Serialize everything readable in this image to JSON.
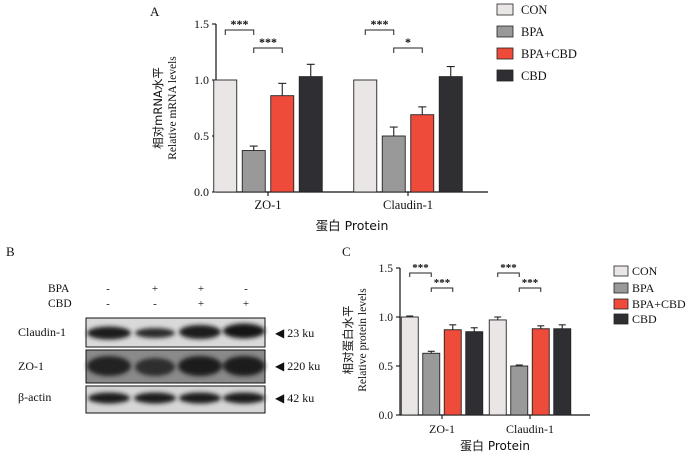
{
  "panel_labels": {
    "a": "A",
    "b": "B",
    "c": "C"
  },
  "legend_a": [
    "CON",
    "BPA",
    "BPA+CBD",
    "CBD"
  ],
  "legend_c": [
    "CON",
    "BPA",
    "BPA+CBD",
    "CBD"
  ],
  "colors": {
    "CON": "#ebe6e6",
    "BPA": "#999999",
    "BPA+CBD": "#ee4b3a",
    "CBD": "#2f2f33",
    "outline": "#222222"
  },
  "chart_data": [
    {
      "id": "A",
      "type": "bar",
      "title": "",
      "ylabel_cn": "相对mRNA水平",
      "ylabel_en": "Relative mRNA levels",
      "xlabel": "蛋白 Protein",
      "ylim": [
        0,
        1.5
      ],
      "yticks": [
        "0.0",
        "0.5",
        "1.0",
        "1.5"
      ],
      "ytick_values": [
        0,
        0.5,
        1.0,
        1.5
      ],
      "categories": [
        "ZO-1",
        "Claudin-1"
      ],
      "series": [
        {
          "name": "CON",
          "values": [
            1.0,
            1.0
          ],
          "errors": [
            0,
            0
          ]
        },
        {
          "name": "BPA",
          "values": [
            0.37,
            0.5
          ],
          "errors": [
            0.04,
            0.08
          ]
        },
        {
          "name": "BPA+CBD",
          "values": [
            0.86,
            0.69
          ],
          "errors": [
            0.11,
            0.07
          ]
        },
        {
          "name": "CBD",
          "values": [
            1.03,
            1.03
          ],
          "errors": [
            0.11,
            0.09
          ]
        }
      ],
      "significance": [
        {
          "category": 0,
          "from": 0,
          "to": 1,
          "label": "***"
        },
        {
          "category": 0,
          "from": 1,
          "to": 2,
          "label": "***"
        },
        {
          "category": 1,
          "from": 0,
          "to": 1,
          "label": "***"
        },
        {
          "category": 1,
          "from": 1,
          "to": 2,
          "label": "*"
        }
      ]
    },
    {
      "id": "C",
      "type": "bar",
      "title": "",
      "ylabel_cn": "相对蛋白水平",
      "ylabel_en": "Relative protein levels",
      "xlabel": "蛋白 Protein",
      "ylim": [
        0,
        1.5
      ],
      "yticks": [
        "0.0",
        "0.5",
        "1.0",
        "1.5"
      ],
      "ytick_values": [
        0,
        0.5,
        1.0,
        1.5
      ],
      "categories": [
        "ZO-1",
        "Claudin-1"
      ],
      "series": [
        {
          "name": "CON",
          "values": [
            1.0,
            0.97
          ],
          "errors": [
            0.01,
            0.03
          ]
        },
        {
          "name": "BPA",
          "values": [
            0.63,
            0.5
          ],
          "errors": [
            0.02,
            0.01
          ]
        },
        {
          "name": "BPA+CBD",
          "values": [
            0.87,
            0.88
          ],
          "errors": [
            0.05,
            0.03
          ]
        },
        {
          "name": "CBD",
          "values": [
            0.85,
            0.88
          ],
          "errors": [
            0.04,
            0.04
          ]
        }
      ],
      "significance": [
        {
          "category": 0,
          "from": 0,
          "to": 1,
          "label": "***"
        },
        {
          "category": 0,
          "from": 1,
          "to": 2,
          "label": "***"
        },
        {
          "category": 1,
          "from": 0,
          "to": 1,
          "label": "***"
        },
        {
          "category": 1,
          "from": 1,
          "to": 2,
          "label": "***"
        }
      ]
    }
  ],
  "western_blot": {
    "treatments": [
      {
        "label": "BPA",
        "signs": [
          "-",
          "+",
          "+",
          "-"
        ]
      },
      {
        "label": "CBD",
        "signs": [
          "-",
          "-",
          "+",
          "+"
        ]
      }
    ],
    "bands": [
      {
        "protein": "Claudin-1",
        "size": "◀ 23 ku"
      },
      {
        "protein": "ZO-1",
        "size": "◀ 220 ku"
      },
      {
        "protein": "β-actin",
        "size": "◀ 42 ku"
      }
    ]
  }
}
